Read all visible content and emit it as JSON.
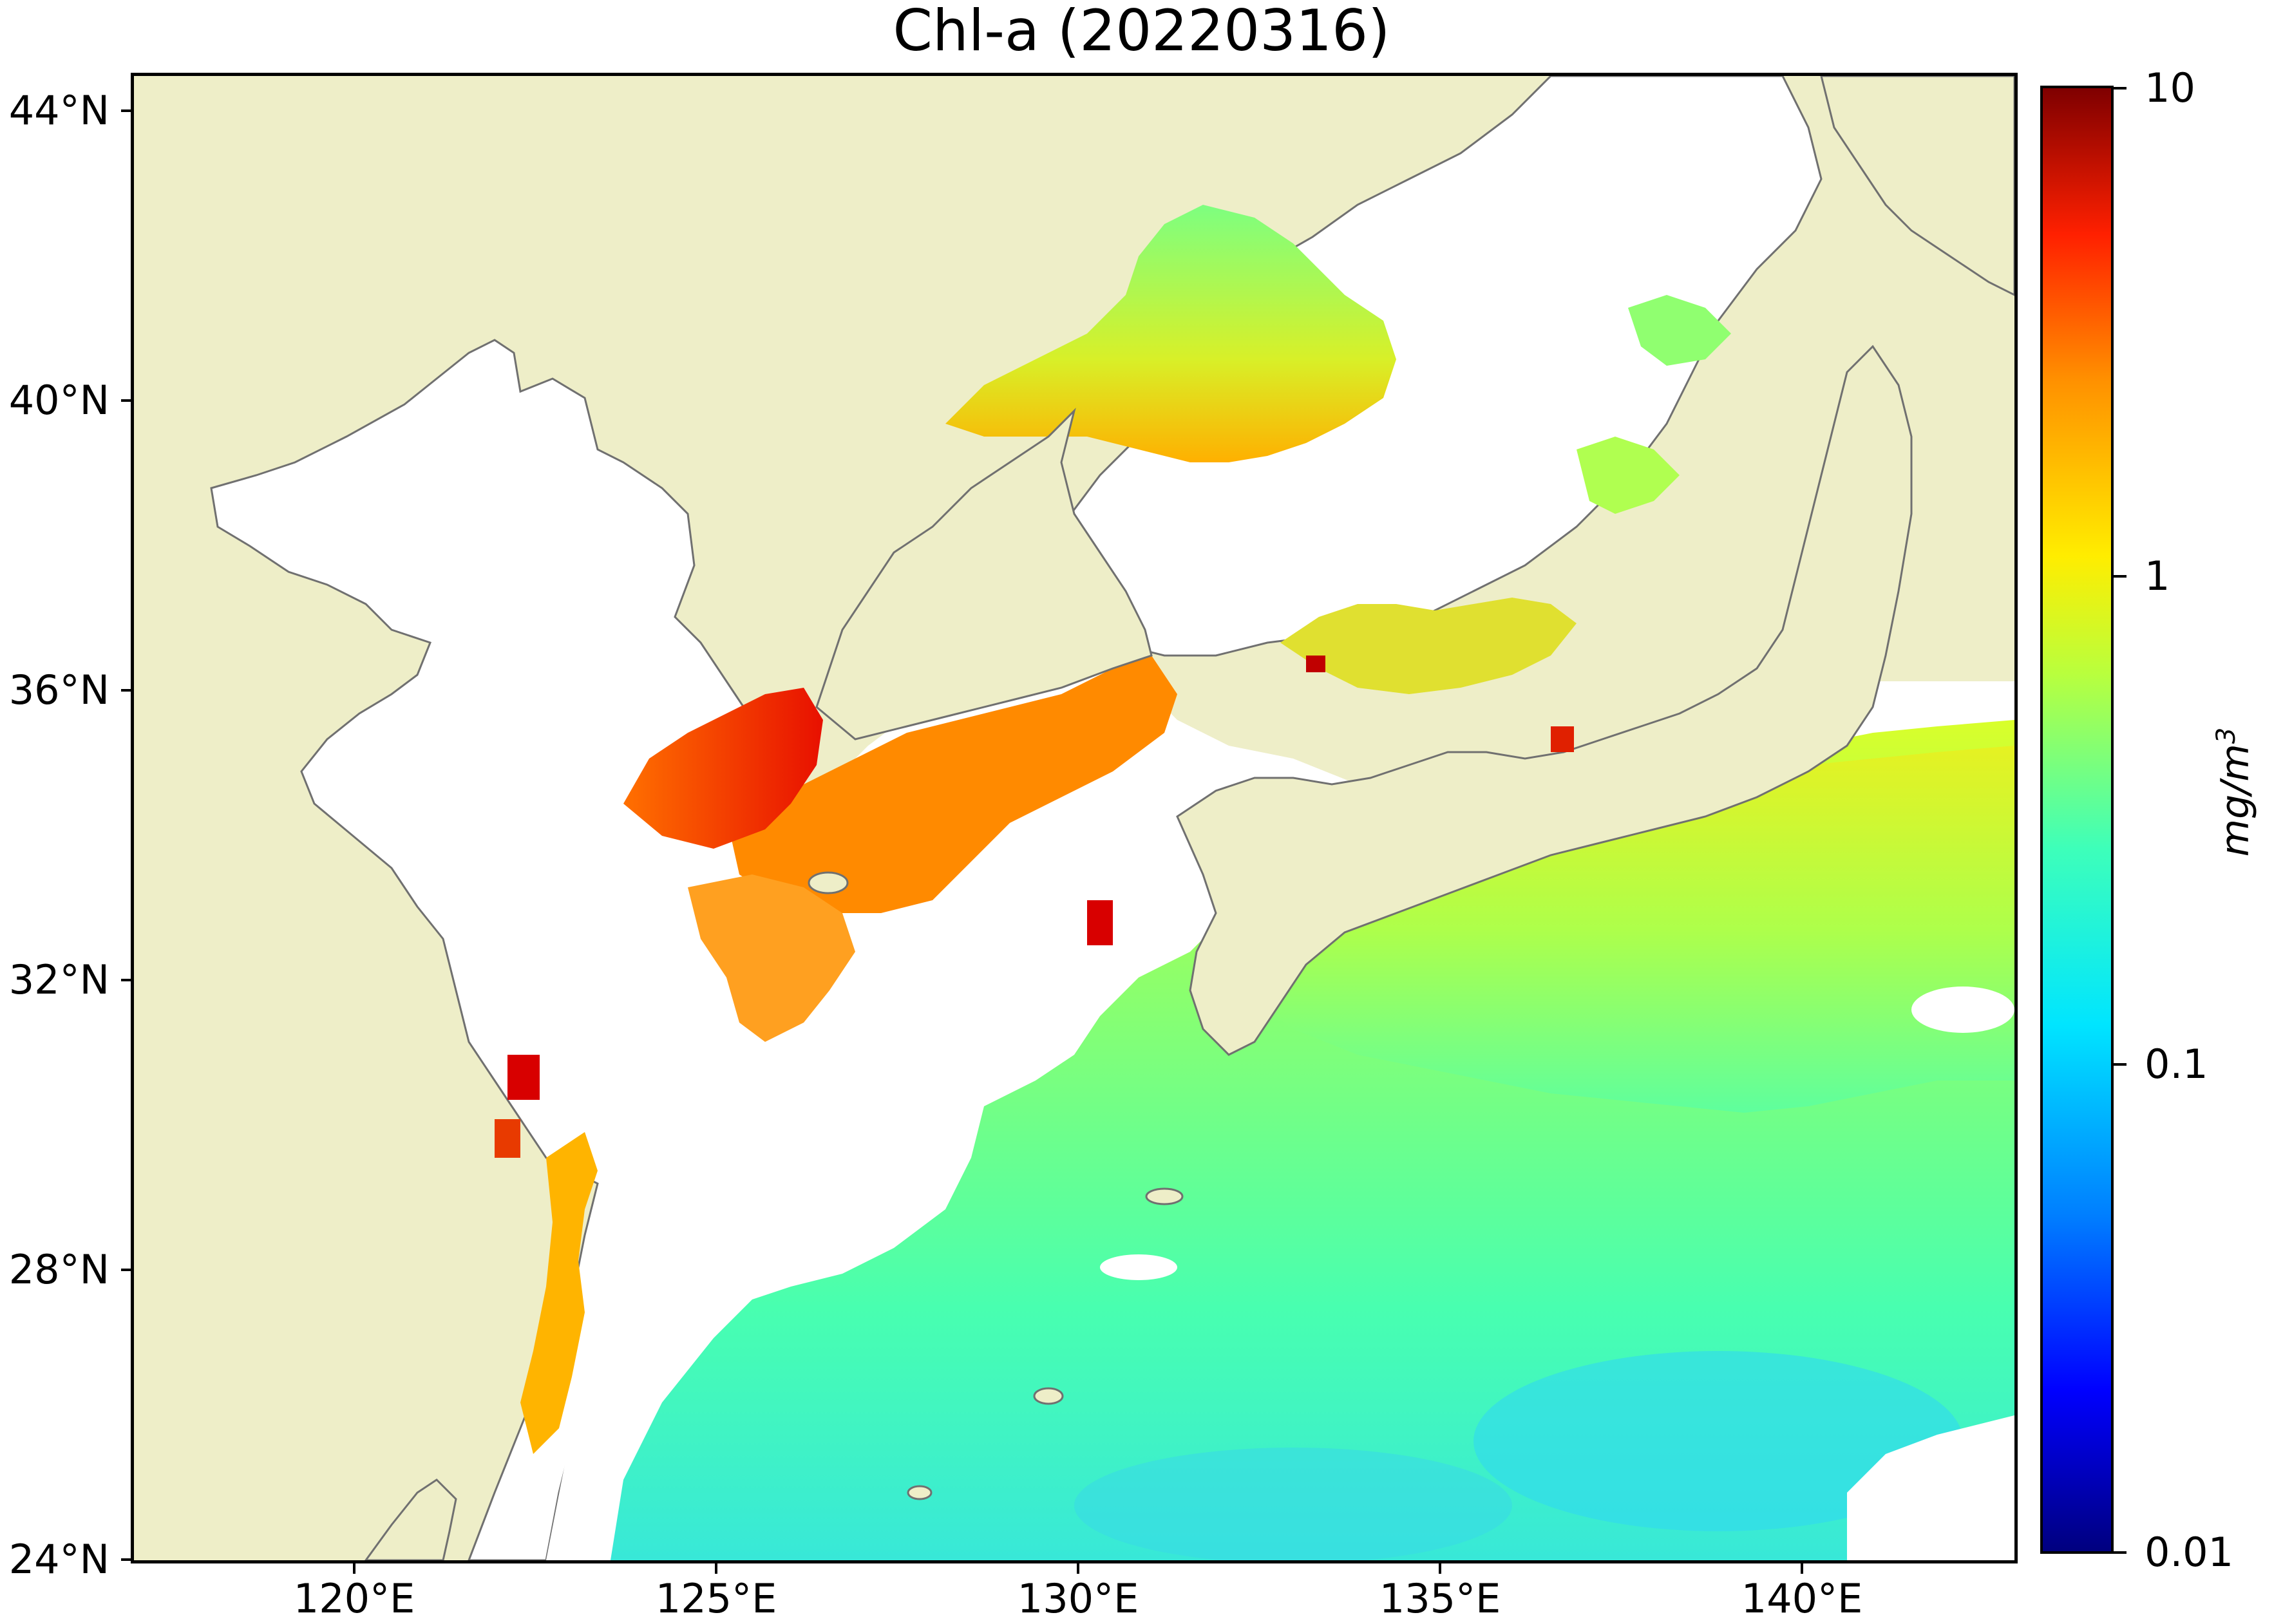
{
  "title": "Chl-a (20220316)",
  "map": {
    "lat_ticks": [
      "44°N",
      "40°N",
      "36°N",
      "32°N",
      "28°N",
      "24°N"
    ],
    "lon_ticks": [
      "120°E",
      "125°E",
      "130°E",
      "135°E",
      "140°E"
    ],
    "land_color": "#eeeec8",
    "ocean_nodata_color": "#ffffff",
    "coastline_color": "#707070"
  },
  "colorbar": {
    "ticks": [
      "10",
      "1",
      "0.1",
      "0.01"
    ],
    "unit": "mg/m",
    "unit_superscript": "3",
    "scale": "log",
    "range": [
      0.01,
      10
    ],
    "colormap": "jet"
  }
}
